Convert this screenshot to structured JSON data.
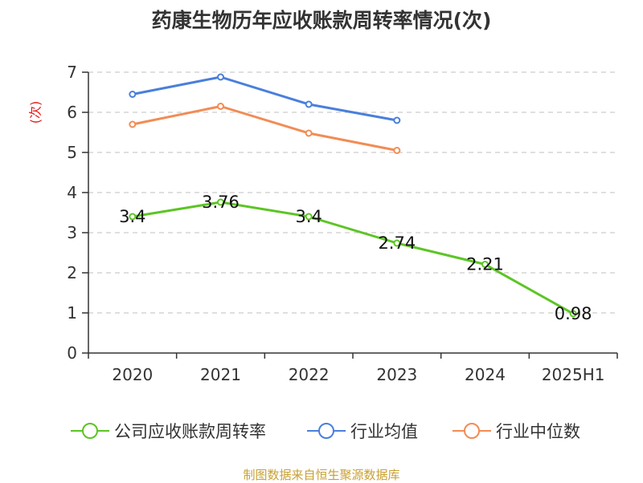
{
  "title": "药康生物历年应收账款周转率情况(次)",
  "source": "制图数据来自恒生聚源数据库",
  "colors": {
    "company": "#5cc524",
    "industry_avg": "#4a7fdc",
    "industry_median": "#f28c55",
    "axis": "#333333",
    "grid": "#cccccc"
  },
  "legend": {
    "company": "公司应收账款周转率",
    "industry_avg": "行业均值",
    "industry_median": "行业中位数"
  },
  "chart_data": {
    "type": "line",
    "title": "药康生物历年应收账款周转率情况(次)",
    "ylabel": "(次)",
    "ylim": [
      0,
      7
    ],
    "yticks": [
      "0",
      "1",
      "2",
      "3",
      "4",
      "5",
      "6",
      "7"
    ],
    "categories": [
      "2020",
      "2021",
      "2022",
      "2023",
      "2024",
      "2025H1"
    ],
    "grid": true,
    "legend_position": "bottom",
    "series": [
      {
        "key": "company",
        "name": "公司应收账款周转率",
        "values": [
          3.4,
          3.76,
          3.4,
          2.74,
          2.21,
          0.98
        ],
        "labels": [
          "3.4",
          "3.76",
          "3.4",
          "2.74",
          "2.21",
          "0.98"
        ]
      },
      {
        "key": "industry_avg",
        "name": "行业均值",
        "values": [
          6.45,
          6.88,
          6.2,
          5.8,
          null,
          null
        ]
      },
      {
        "key": "industry_median",
        "name": "行业中位数",
        "values": [
          5.7,
          6.15,
          5.48,
          5.05,
          null,
          null
        ]
      }
    ]
  }
}
